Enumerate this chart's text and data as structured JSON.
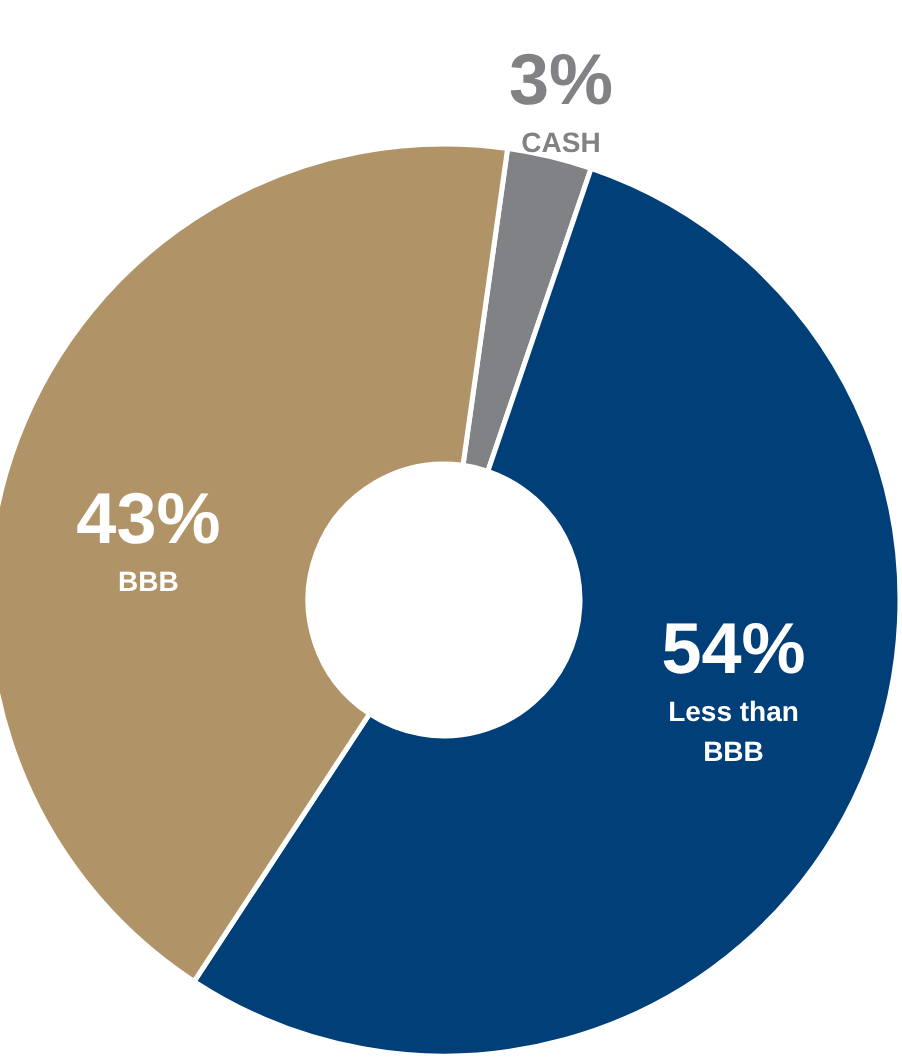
{
  "chart_data": {
    "type": "donut",
    "categories": [
      "CASH",
      "Less than BBB",
      "BBB"
    ],
    "values": [
      3,
      54,
      43
    ],
    "colors": [
      "#818285",
      "#003f78",
      "#b09468"
    ],
    "value_labels": [
      "3%",
      "54%",
      "43%"
    ]
  }
}
